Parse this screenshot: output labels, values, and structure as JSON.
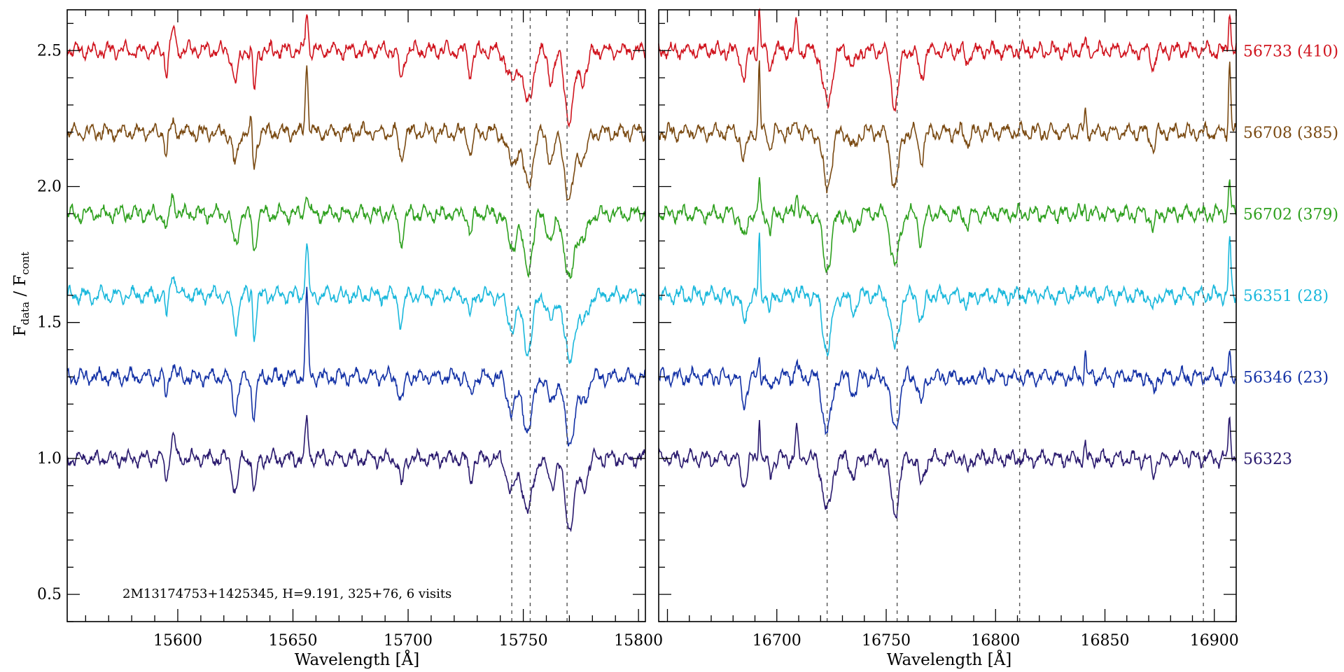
{
  "chart_data": {
    "type": "line",
    "ylabel": "F",
    "ylabel_sub1": "data",
    "ylabel_mid": " / F",
    "ylabel_sub2": "cont",
    "xlabel": "Wavelength [Å]",
    "ylim": [
      0.4,
      2.65
    ],
    "yticks": [
      "0.5",
      "1.0",
      "1.5",
      "2.0",
      "2.5"
    ],
    "annotation": "2M13174753+1425345,    H=9.191,    325+76,    6 visits",
    "panels": [
      {
        "xlim": [
          15552,
          15803
        ],
        "xticks": [
          "15600",
          "15650",
          "15700",
          "15750",
          "15800"
        ],
        "vlines": [
          15745,
          15753,
          15769
        ]
      },
      {
        "xlim": [
          16646,
          16910
        ],
        "xticks": [
          "16700",
          "16750",
          "16800",
          "16850",
          "16900"
        ],
        "vlines": [
          16723,
          16755,
          16811,
          16895
        ]
      }
    ],
    "series": [
      {
        "name": "56733 (410)",
        "offset": 1.5,
        "color": "#d0141e"
      },
      {
        "name": "56708 (385)",
        "offset": 1.2,
        "color": "#7a4a12"
      },
      {
        "name": "56702 (379)",
        "offset": 0.9,
        "color": "#2ea01e"
      },
      {
        "name": "56351 (28)",
        "offset": 0.6,
        "color": "#1ab8dc"
      },
      {
        "name": "56346 (23)",
        "offset": 0.3,
        "color": "#1432a6"
      },
      {
        "name": "56323",
        "offset": 0.0,
        "color": "#2a1a6e"
      }
    ],
    "lines": {
      "left": [
        [
          15595,
          -0.08,
          0.6
        ],
        [
          15598,
          0.1,
          0.8
        ],
        [
          15625,
          -0.12,
          1.2
        ],
        [
          15632,
          0.12,
          0.5
        ],
        [
          15633,
          -0.15,
          1.0
        ],
        [
          15656,
          0.3,
          0.6
        ],
        [
          15697,
          -0.1,
          1.0
        ],
        [
          15727,
          -0.08,
          0.9
        ],
        [
          15745,
          -0.12,
          2.0
        ],
        [
          15752,
          -0.2,
          2.0
        ],
        [
          15762,
          -0.1,
          1.5
        ],
        [
          15770,
          -0.25,
          2.0
        ],
        [
          15776,
          -0.1,
          1.8
        ]
      ],
      "right": [
        [
          16685,
          -0.1,
          1.2
        ],
        [
          16692,
          0.25,
          0.4
        ],
        [
          16697,
          -0.06,
          0.8
        ],
        [
          16709,
          0.1,
          0.6
        ],
        [
          16723,
          -0.2,
          2.0
        ],
        [
          16735,
          -0.06,
          1.5
        ],
        [
          16754,
          -0.2,
          1.8
        ],
        [
          16766,
          -0.1,
          1.2
        ],
        [
          16787,
          -0.04,
          1.0
        ],
        [
          16841,
          0.1,
          0.4
        ],
        [
          16872,
          -0.06,
          1.0
        ],
        [
          16907,
          0.25,
          0.5
        ]
      ]
    }
  }
}
